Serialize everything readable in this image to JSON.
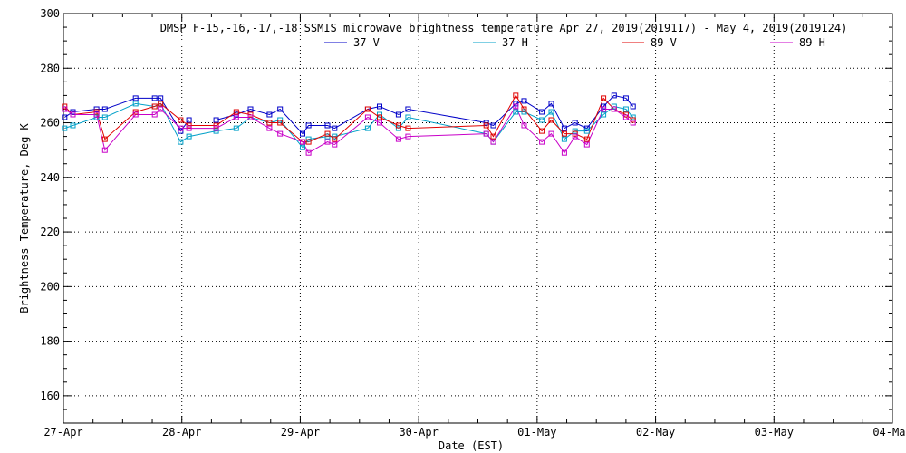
{
  "chart_data": {
    "type": "line",
    "title": "DMSP F-15,-16,-17,-18 SSMIS microwave brightness temperature Apr 27, 2019(2019117) - May  4, 2019(2019124)",
    "xlabel": "Date (EST)",
    "ylabel": "Brightness Temperature, Deg K",
    "xlim": [
      0,
      7
    ],
    "ylim": [
      150,
      300
    ],
    "x_ticks": [
      0,
      1,
      2,
      3,
      4,
      5,
      6,
      7
    ],
    "x_tick_labels": [
      "27-Apr",
      "28-Apr",
      "29-Apr",
      "30-Apr",
      "01-May",
      "02-May",
      "03-May",
      "04-May"
    ],
    "y_ticks": [
      160,
      180,
      200,
      220,
      240,
      260,
      280,
      300
    ],
    "y_tick_labels": [
      "160",
      "180",
      "200",
      "220",
      "240",
      "260",
      "280",
      "300"
    ],
    "grid": true,
    "legend_position": "top-center",
    "series": [
      {
        "name": "37 V",
        "color": "#0000c8",
        "x": [
          0.01,
          0.08,
          0.28,
          0.35,
          0.61,
          0.77,
          0.82,
          0.99,
          1.06,
          1.29,
          1.46,
          1.58,
          1.74,
          1.83,
          2.02,
          2.07,
          2.23,
          2.29,
          2.57,
          2.67,
          2.83,
          2.91,
          3.57,
          3.63,
          3.82,
          3.89,
          4.04,
          4.12,
          4.23,
          4.32,
          4.42,
          4.56,
          4.65,
          4.75,
          4.81
        ],
        "y": [
          262,
          264,
          265,
          265,
          269,
          269,
          269,
          257,
          261,
          261,
          263,
          265,
          263,
          265,
          256,
          259,
          259,
          258,
          265,
          266,
          263,
          265,
          260,
          259,
          267,
          268,
          264,
          267,
          258,
          260,
          258,
          266,
          270,
          269,
          266
        ]
      },
      {
        "name": "37 H",
        "color": "#00a0c8",
        "x": [
          0.01,
          0.08,
          0.28,
          0.35,
          0.61,
          0.77,
          0.82,
          0.99,
          1.06,
          1.29,
          1.46,
          1.58,
          1.74,
          1.83,
          2.02,
          2.07,
          2.23,
          2.29,
          2.57,
          2.67,
          2.83,
          2.91,
          3.57,
          3.63,
          3.82,
          3.89,
          4.04,
          4.12,
          4.23,
          4.32,
          4.42,
          4.56,
          4.65,
          4.75,
          4.81
        ],
        "y": [
          258,
          259,
          262,
          262,
          267,
          266,
          267,
          253,
          255,
          257,
          258,
          262,
          260,
          261,
          251,
          254,
          255,
          255,
          258,
          263,
          258,
          262,
          256,
          253,
          264,
          264,
          261,
          264,
          254,
          257,
          257,
          263,
          266,
          265,
          262
        ]
      },
      {
        "name": "89 V",
        "color": "#e00000",
        "x": [
          0.01,
          0.08,
          0.28,
          0.35,
          0.61,
          0.77,
          0.82,
          0.99,
          1.06,
          1.29,
          1.46,
          1.58,
          1.74,
          1.83,
          2.02,
          2.07,
          2.23,
          2.29,
          2.57,
          2.67,
          2.83,
          2.91,
          3.57,
          3.63,
          3.82,
          3.89,
          4.04,
          4.12,
          4.23,
          4.32,
          4.42,
          4.56,
          4.65,
          4.75,
          4.81
        ],
        "y": [
          266,
          263,
          264,
          254,
          264,
          266,
          267,
          261,
          259,
          259,
          264,
          263,
          260,
          260,
          253,
          253,
          256,
          254,
          265,
          262,
          259,
          258,
          259,
          255,
          270,
          265,
          257,
          261,
          256,
          256,
          254,
          269,
          265,
          263,
          261
        ]
      },
      {
        "name": "89 H",
        "color": "#c800c8",
        "x": [
          0.01,
          0.08,
          0.28,
          0.35,
          0.61,
          0.77,
          0.82,
          0.99,
          1.06,
          1.29,
          1.46,
          1.58,
          1.74,
          1.83,
          2.02,
          2.07,
          2.23,
          2.29,
          2.57,
          2.67,
          2.83,
          2.91,
          3.57,
          3.63,
          3.82,
          3.89,
          4.04,
          4.12,
          4.23,
          4.32,
          4.42,
          4.56,
          4.65,
          4.75,
          4.81
        ],
        "y": [
          265,
          263,
          263,
          250,
          263,
          263,
          265,
          258,
          258,
          258,
          262,
          262,
          258,
          256,
          253,
          249,
          253,
          252,
          262,
          260,
          254,
          255,
          256,
          253,
          266,
          259,
          253,
          256,
          249,
          255,
          252,
          265,
          265,
          262,
          260
        ]
      }
    ]
  }
}
